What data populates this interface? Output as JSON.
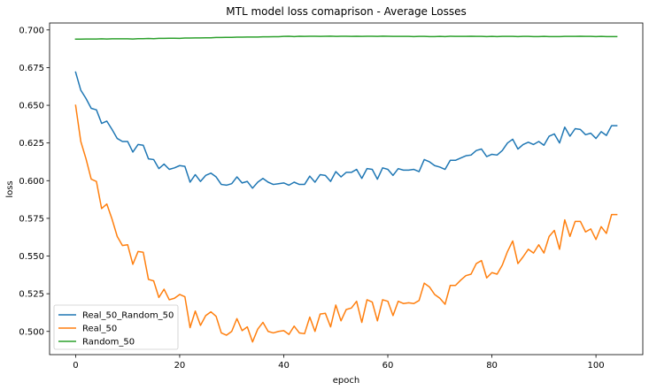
{
  "chart_data": {
    "type": "line",
    "title": "MTL model loss comaprison - Average Losses",
    "xlabel": "epoch",
    "ylabel": "loss",
    "xlim": [
      -5,
      109
    ],
    "ylim": [
      0.4846,
      0.7046
    ],
    "xticks": [
      0,
      20,
      40,
      60,
      80,
      100
    ],
    "yticks": [
      0.5,
      0.525,
      0.55,
      0.575,
      0.6,
      0.625,
      0.65,
      0.675,
      0.7
    ],
    "ytick_labels": [
      "0.500",
      "0.525",
      "0.550",
      "0.575",
      "0.600",
      "0.625",
      "0.650",
      "0.675",
      "0.700"
    ],
    "grid": false,
    "legend_position": "lower-left",
    "series": [
      {
        "name": "Real_50_Random_50",
        "color": "#1f77b4",
        "values": [
          0.672,
          0.66,
          0.6545,
          0.648,
          0.647,
          0.638,
          0.6395,
          0.634,
          0.628,
          0.626,
          0.626,
          0.619,
          0.624,
          0.6235,
          0.6145,
          0.614,
          0.608,
          0.611,
          0.6075,
          0.6085,
          0.61,
          0.6095,
          0.599,
          0.604,
          0.5995,
          0.6035,
          0.605,
          0.6025,
          0.5975,
          0.597,
          0.598,
          0.6025,
          0.5985,
          0.5995,
          0.595,
          0.599,
          0.6015,
          0.599,
          0.5975,
          0.598,
          0.5985,
          0.597,
          0.599,
          0.5975,
          0.5975,
          0.603,
          0.599,
          0.604,
          0.6035,
          0.5995,
          0.606,
          0.6025,
          0.6055,
          0.6055,
          0.6075,
          0.6015,
          0.608,
          0.6075,
          0.601,
          0.6085,
          0.6075,
          0.6035,
          0.608,
          0.607,
          0.607,
          0.6075,
          0.606,
          0.614,
          0.6125,
          0.61,
          0.609,
          0.6075,
          0.6135,
          0.6135,
          0.615,
          0.6165,
          0.617,
          0.62,
          0.621,
          0.616,
          0.6175,
          0.617,
          0.62,
          0.625,
          0.6275,
          0.621,
          0.624,
          0.6255,
          0.624,
          0.626,
          0.6235,
          0.6295,
          0.631,
          0.625,
          0.6355,
          0.6295,
          0.6345,
          0.634,
          0.6305,
          0.6315,
          0.628,
          0.6325,
          0.63,
          0.6365,
          0.6365
        ]
      },
      {
        "name": "Real_50",
        "color": "#ff7f0e",
        "values": [
          0.65,
          0.626,
          0.6145,
          0.601,
          0.5995,
          0.5815,
          0.5845,
          0.5745,
          0.563,
          0.557,
          0.5575,
          0.5445,
          0.553,
          0.5525,
          0.5345,
          0.5335,
          0.5225,
          0.528,
          0.521,
          0.522,
          0.5245,
          0.523,
          0.5025,
          0.5135,
          0.504,
          0.5105,
          0.513,
          0.51,
          0.499,
          0.4975,
          0.5,
          0.5085,
          0.5005,
          0.503,
          0.493,
          0.5015,
          0.506,
          0.5,
          0.499,
          0.5,
          0.5005,
          0.498,
          0.5035,
          0.499,
          0.4985,
          0.5095,
          0.5,
          0.5115,
          0.512,
          0.503,
          0.5175,
          0.507,
          0.5145,
          0.5155,
          0.52,
          0.506,
          0.521,
          0.5195,
          0.507,
          0.521,
          0.52,
          0.5105,
          0.52,
          0.5185,
          0.519,
          0.5185,
          0.5205,
          0.532,
          0.5295,
          0.5245,
          0.522,
          0.518,
          0.5305,
          0.5305,
          0.534,
          0.537,
          0.538,
          0.545,
          0.547,
          0.5355,
          0.539,
          0.538,
          0.544,
          0.553,
          0.56,
          0.545,
          0.5495,
          0.5545,
          0.552,
          0.5575,
          0.552,
          0.563,
          0.567,
          0.5545,
          0.574,
          0.563,
          0.573,
          0.573,
          0.566,
          0.568,
          0.561,
          0.5695,
          0.565,
          0.5775,
          0.5775
        ]
      },
      {
        "name": "Random_50",
        "color": "#2ca02c",
        "values": [
          0.6939,
          0.6939,
          0.694,
          0.694,
          0.694,
          0.6941,
          0.694,
          0.6941,
          0.6941,
          0.6941,
          0.6941,
          0.694,
          0.6942,
          0.6942,
          0.6943,
          0.6942,
          0.6944,
          0.6944,
          0.6945,
          0.6945,
          0.6944,
          0.6946,
          0.6946,
          0.6947,
          0.6947,
          0.6948,
          0.6948,
          0.695,
          0.695,
          0.6951,
          0.6951,
          0.6952,
          0.6952,
          0.6953,
          0.6953,
          0.6953,
          0.6954,
          0.6954,
          0.6955,
          0.6955,
          0.6957,
          0.6958,
          0.6956,
          0.6958,
          0.6957,
          0.6958,
          0.6958,
          0.6957,
          0.6958,
          0.6959,
          0.6957,
          0.6958,
          0.6958,
          0.6957,
          0.6958,
          0.6957,
          0.6958,
          0.6958,
          0.6957,
          0.6959,
          0.6958,
          0.6957,
          0.6957,
          0.6957,
          0.6957,
          0.6956,
          0.6957,
          0.6957,
          0.6956,
          0.6956,
          0.6957,
          0.6956,
          0.6958,
          0.6957,
          0.6957,
          0.6957,
          0.6958,
          0.6957,
          0.6957,
          0.6956,
          0.6957,
          0.6956,
          0.6957,
          0.6957,
          0.6957,
          0.6956,
          0.6957,
          0.6957,
          0.6956,
          0.6956,
          0.6957,
          0.6956,
          0.6956,
          0.6956,
          0.6957,
          0.6957,
          0.6957,
          0.6958,
          0.6957,
          0.6957,
          0.6956,
          0.6957,
          0.6956,
          0.6956,
          0.6956
        ]
      }
    ]
  }
}
